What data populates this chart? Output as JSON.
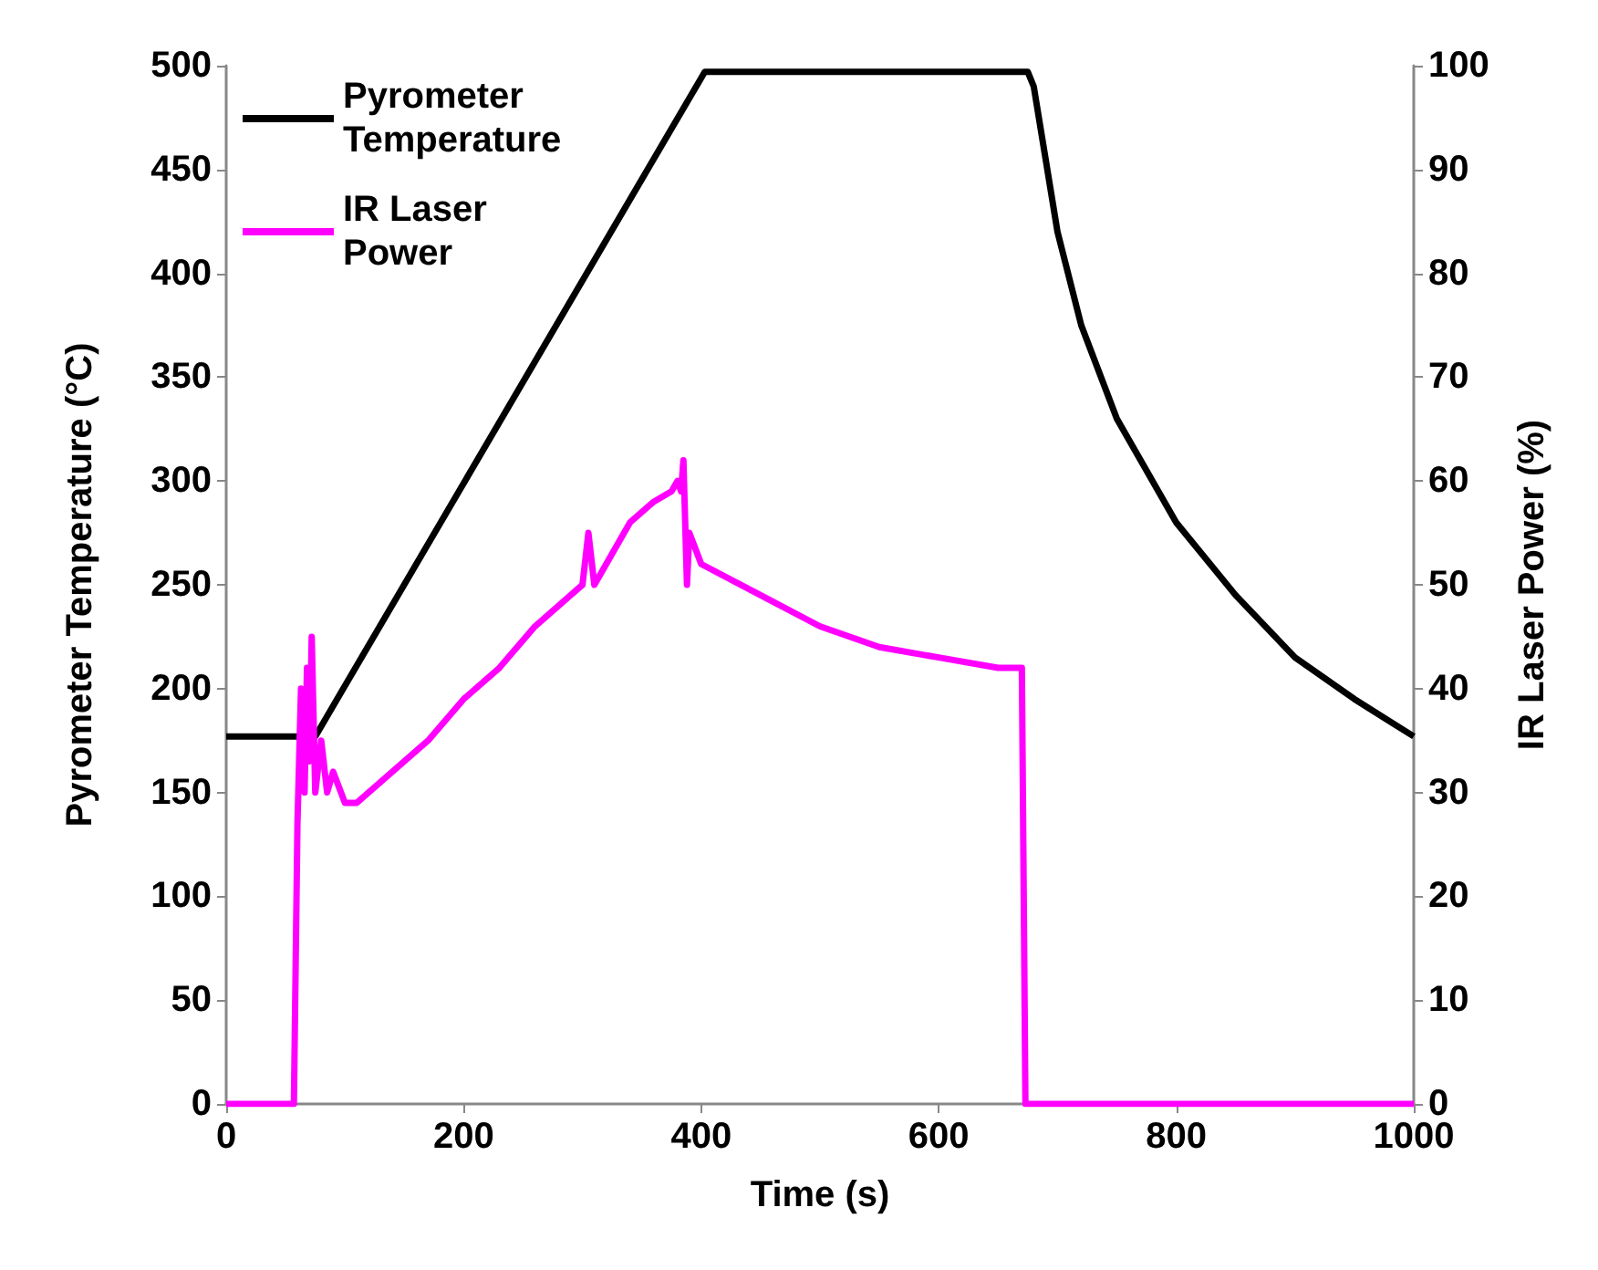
{
  "chart_data": {
    "type": "line",
    "xlabel": "Time (s)",
    "ylabel": "Pyrometer Temperature (°C)",
    "y2label": "IR Laser Power (%)",
    "xlim": [
      0,
      1000
    ],
    "xticks": [
      0,
      200,
      400,
      600,
      800,
      1000
    ],
    "ylim": [
      0,
      500
    ],
    "yticks": [
      0,
      50,
      100,
      150,
      200,
      250,
      300,
      350,
      400,
      450,
      500
    ],
    "y2lim": [
      0,
      100
    ],
    "y2ticks": [
      0,
      10,
      20,
      30,
      40,
      50,
      60,
      70,
      80,
      90,
      100
    ],
    "grid": false,
    "legend": "top left",
    "marker": "none",
    "line_style": "solid",
    "series": [
      {
        "name": "Pyrometer Temperature",
        "color": "#000000",
        "x": [
          0,
          75,
          403,
          675,
          680,
          690,
          700,
          720,
          750,
          800,
          850,
          900,
          950,
          1000
        ],
        "values": [
          177,
          177,
          497,
          497,
          490,
          455,
          420,
          375,
          330,
          280,
          245,
          215,
          195,
          177
        ]
      },
      {
        "name": "IR Laser Power",
        "color": "#ff00ff",
        "axis": "y2",
        "x": [
          0,
          57,
          60,
          63,
          66,
          68,
          70,
          72,
          75,
          80,
          85,
          90,
          100,
          110,
          130,
          150,
          170,
          200,
          230,
          260,
          290,
          300,
          305,
          310,
          320,
          340,
          360,
          375,
          380,
          383,
          385,
          388,
          390,
          400,
          450,
          500,
          550,
          600,
          650,
          670,
          673,
          1000
        ],
        "values": [
          0,
          0,
          27,
          40,
          30,
          42,
          33,
          45,
          30,
          35,
          30,
          32,
          29,
          29,
          31,
          33,
          35,
          39,
          42,
          46,
          49,
          50,
          55,
          50,
          52,
          56,
          58,
          59,
          60,
          59,
          62,
          50,
          55,
          52,
          49,
          46,
          44,
          43,
          42,
          42,
          0,
          0
        ]
      }
    ]
  }
}
